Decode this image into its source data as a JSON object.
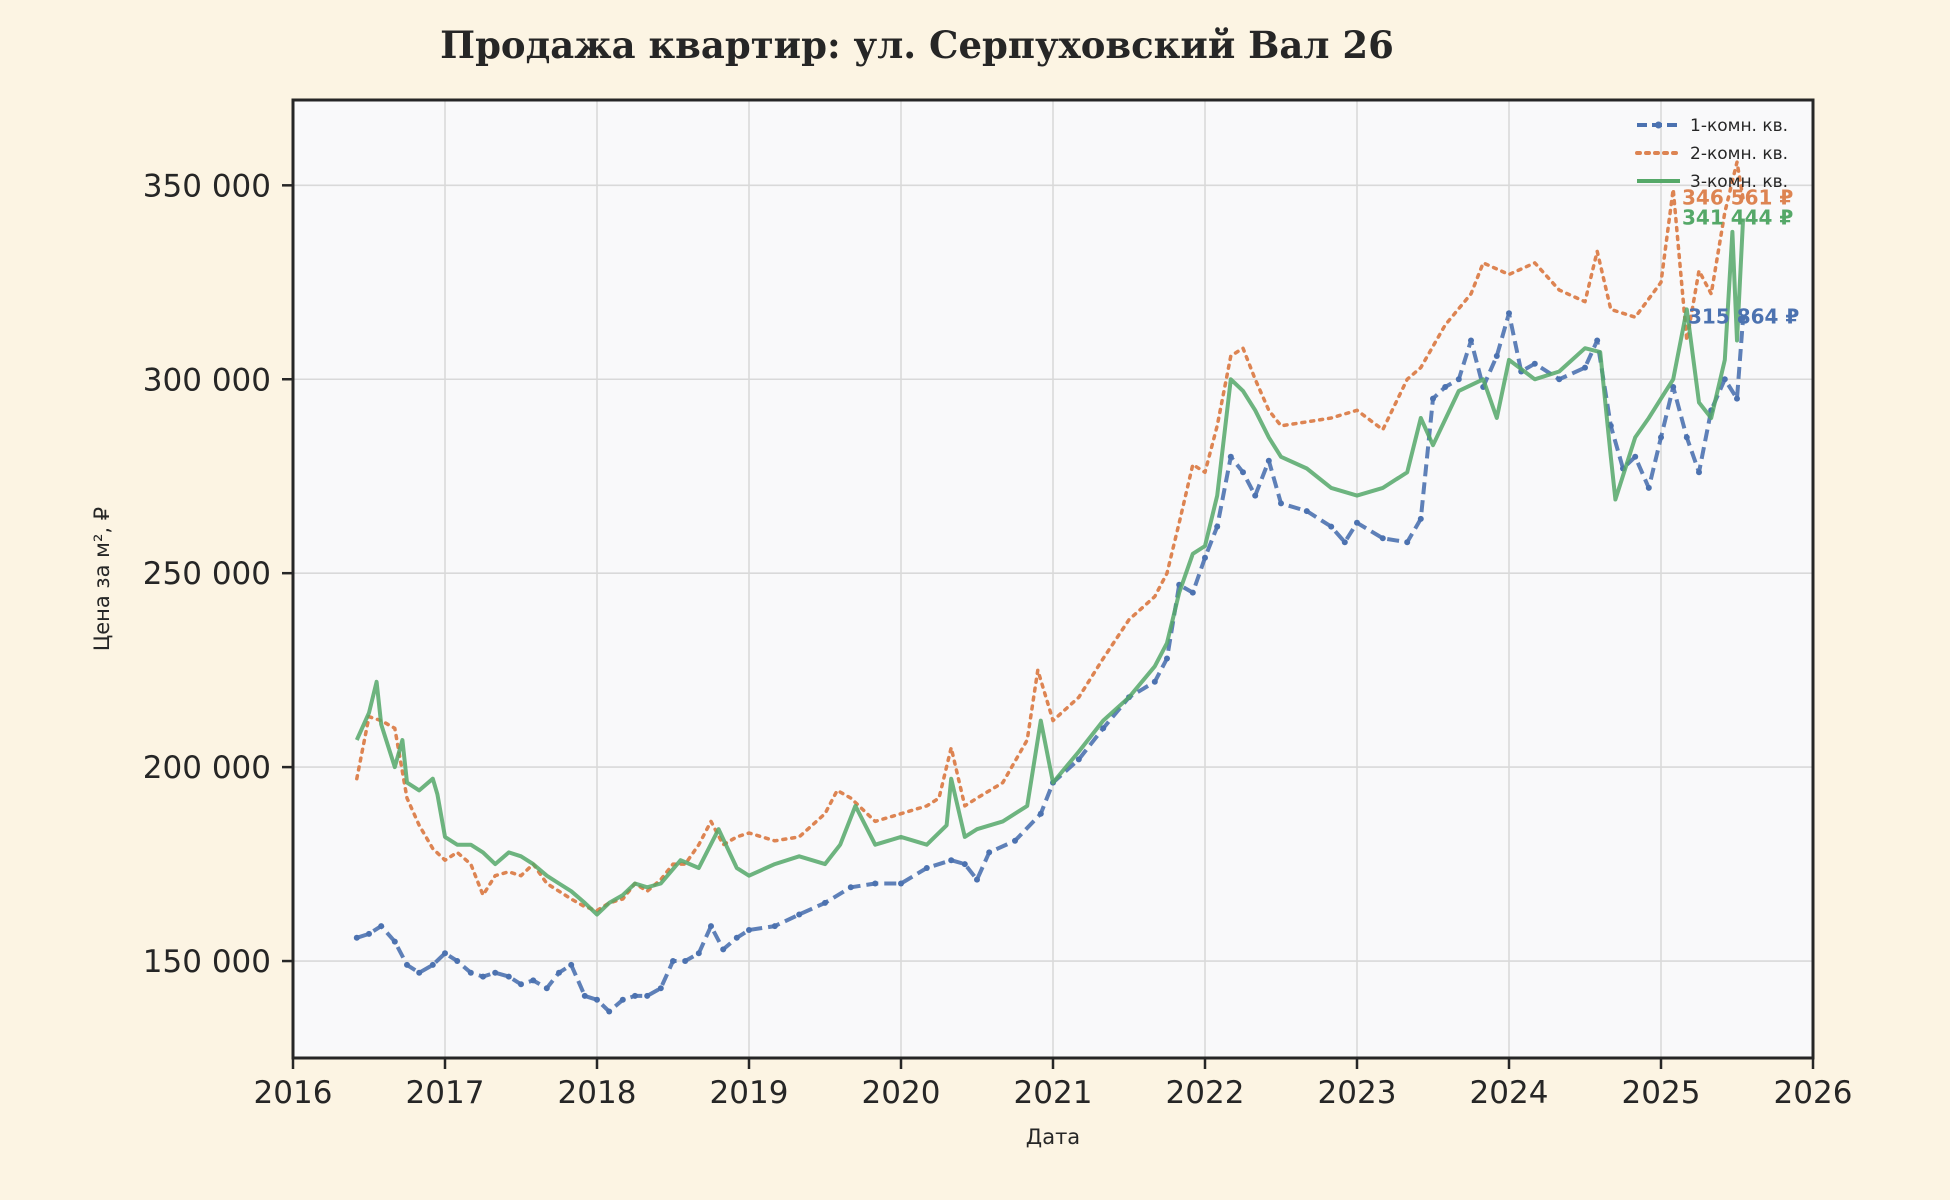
{
  "chart_data": {
    "type": "line",
    "title": "Продажа квартир: ул. Серпуховский Вал 26",
    "xlabel": "Дата",
    "ylabel": "Цена за м², ₽",
    "xlim": [
      2016.0,
      2026.0
    ],
    "ylim": [
      125000,
      372000
    ],
    "x_ticks": [
      2016,
      2017,
      2018,
      2019,
      2020,
      2021,
      2022,
      2023,
      2024,
      2025,
      2026
    ],
    "x_tick_labels": [
      "2016",
      "2017",
      "2018",
      "2019",
      "2020",
      "2021",
      "2022",
      "2023",
      "2024",
      "2025",
      "2026"
    ],
    "y_ticks": [
      150000,
      200000,
      250000,
      300000,
      350000
    ],
    "y_tick_labels": [
      "150 000",
      "200 000",
      "250 000",
      "300 000",
      "350 000"
    ],
    "grid": true,
    "legend_position": "top-right",
    "series": [
      {
        "name": "1-комн. кв.",
        "color": "#4c72b0",
        "style": "dashed-markers",
        "end_label": "315 864 ₽",
        "x": [
          2016.42,
          2016.5,
          2016.58,
          2016.67,
          2016.75,
          2016.83,
          2016.92,
          2017.0,
          2017.08,
          2017.17,
          2017.25,
          2017.33,
          2017.42,
          2017.5,
          2017.58,
          2017.67,
          2017.75,
          2017.83,
          2017.92,
          2018.0,
          2018.08,
          2018.17,
          2018.25,
          2018.33,
          2018.42,
          2018.5,
          2018.58,
          2018.67,
          2018.75,
          2018.83,
          2018.92,
          2019.0,
          2019.17,
          2019.33,
          2019.5,
          2019.67,
          2019.83,
          2020.0,
          2020.17,
          2020.33,
          2020.42,
          2020.5,
          2020.58,
          2020.75,
          2020.92,
          2021.0,
          2021.17,
          2021.33,
          2021.5,
          2021.67,
          2021.75,
          2021.83,
          2021.92,
          2022.0,
          2022.08,
          2022.17,
          2022.25,
          2022.33,
          2022.42,
          2022.5,
          2022.67,
          2022.83,
          2022.92,
          2023.0,
          2023.17,
          2023.33,
          2023.42,
          2023.5,
          2023.58,
          2023.67,
          2023.75,
          2023.83,
          2023.92,
          2024.0,
          2024.08,
          2024.17,
          2024.33,
          2024.5,
          2024.58,
          2024.67,
          2024.75,
          2024.83,
          2024.92,
          2025.0,
          2025.08,
          2025.17,
          2025.25,
          2025.33,
          2025.42,
          2025.5,
          2025.54
        ],
        "y": [
          156000,
          157000,
          159000,
          155000,
          149000,
          147000,
          149000,
          152000,
          150000,
          147000,
          146000,
          147000,
          146000,
          144000,
          145000,
          143000,
          147000,
          149000,
          141000,
          140000,
          137000,
          140000,
          141000,
          141000,
          143000,
          150000,
          150000,
          152000,
          159000,
          153000,
          156000,
          158000,
          159000,
          162000,
          165000,
          169000,
          170000,
          170000,
          174000,
          176000,
          175000,
          171000,
          178000,
          181000,
          188000,
          196000,
          202000,
          210000,
          218000,
          222000,
          228000,
          247000,
          245000,
          254000,
          262000,
          280000,
          276000,
          270000,
          279000,
          268000,
          266000,
          262000,
          258000,
          263000,
          259000,
          258000,
          264000,
          295000,
          298000,
          300000,
          310000,
          298000,
          306000,
          317000,
          302000,
          304000,
          300000,
          303000,
          310000,
          288000,
          277000,
          280000,
          272000,
          285000,
          298000,
          285000,
          276000,
          292000,
          300000,
          295000,
          315864
        ]
      },
      {
        "name": "2-комн. кв.",
        "color": "#dd8452",
        "style": "dotted",
        "end_label": "346 561 ₽",
        "x": [
          2016.42,
          2016.5,
          2016.58,
          2016.67,
          2016.75,
          2016.83,
          2016.92,
          2017.0,
          2017.08,
          2017.17,
          2017.25,
          2017.33,
          2017.42,
          2017.5,
          2017.58,
          2017.67,
          2017.75,
          2017.83,
          2017.92,
          2018.0,
          2018.08,
          2018.17,
          2018.25,
          2018.33,
          2018.42,
          2018.5,
          2018.58,
          2018.67,
          2018.75,
          2018.83,
          2018.92,
          2019.0,
          2019.17,
          2019.33,
          2019.5,
          2019.58,
          2019.67,
          2019.83,
          2020.0,
          2020.17,
          2020.25,
          2020.33,
          2020.42,
          2020.5,
          2020.67,
          2020.83,
          2020.9,
          2021.0,
          2021.17,
          2021.33,
          2021.5,
          2021.67,
          2021.75,
          2021.83,
          2021.92,
          2022.0,
          2022.08,
          2022.17,
          2022.25,
          2022.33,
          2022.42,
          2022.5,
          2022.67,
          2022.83,
          2023.0,
          2023.17,
          2023.33,
          2023.42,
          2023.58,
          2023.75,
          2023.83,
          2024.0,
          2024.17,
          2024.33,
          2024.5,
          2024.58,
          2024.67,
          2024.83,
          2025.0,
          2025.08,
          2025.17,
          2025.25,
          2025.33,
          2025.42,
          2025.5,
          2025.54
        ],
        "y": [
          197000,
          213000,
          212000,
          210000,
          192000,
          185000,
          179000,
          176000,
          178000,
          175000,
          167000,
          172000,
          173000,
          172000,
          175000,
          170000,
          168000,
          166000,
          164000,
          163000,
          165000,
          166000,
          170000,
          168000,
          171000,
          175000,
          175000,
          180000,
          186000,
          180000,
          182000,
          183000,
          181000,
          182000,
          188000,
          194000,
          192000,
          186000,
          188000,
          190000,
          192000,
          205000,
          190000,
          192000,
          196000,
          207000,
          225000,
          212000,
          218000,
          228000,
          238000,
          244000,
          250000,
          263000,
          278000,
          276000,
          288000,
          306000,
          308000,
          300000,
          292000,
          288000,
          289000,
          290000,
          292000,
          287000,
          300000,
          303000,
          314000,
          322000,
          330000,
          327000,
          330000,
          323000,
          320000,
          333000,
          318000,
          316000,
          325000,
          349000,
          310000,
          328000,
          322000,
          343000,
          356000,
          346561
        ]
      },
      {
        "name": "3-комн. кв.",
        "color": "#55a868",
        "style": "solid",
        "end_label": "341 444 ₽",
        "x": [
          2016.42,
          2016.5,
          2016.55,
          2016.58,
          2016.67,
          2016.72,
          2016.75,
          2016.83,
          2016.92,
          2016.95,
          2017.0,
          2017.08,
          2017.17,
          2017.25,
          2017.33,
          2017.42,
          2017.5,
          2017.58,
          2017.67,
          2017.75,
          2017.83,
          2017.92,
          2018.0,
          2018.08,
          2018.17,
          2018.25,
          2018.33,
          2018.42,
          2018.55,
          2018.67,
          2018.8,
          2018.92,
          2019.0,
          2019.17,
          2019.33,
          2019.5,
          2019.6,
          2019.7,
          2019.83,
          2020.0,
          2020.17,
          2020.3,
          2020.33,
          2020.42,
          2020.5,
          2020.67,
          2020.83,
          2020.92,
          2021.0,
          2021.17,
          2021.33,
          2021.5,
          2021.67,
          2021.75,
          2021.83,
          2021.92,
          2022.0,
          2022.08,
          2022.17,
          2022.25,
          2022.33,
          2022.42,
          2022.5,
          2022.67,
          2022.83,
          2023.0,
          2023.17,
          2023.33,
          2023.42,
          2023.5,
          2023.67,
          2023.83,
          2023.92,
          2024.0,
          2024.17,
          2024.33,
          2024.5,
          2024.6,
          2024.67,
          2024.7,
          2024.83,
          2024.92,
          2025.0,
          2025.08,
          2025.17,
          2025.25,
          2025.33,
          2025.42,
          2025.47,
          2025.5,
          2025.54
        ],
        "y": [
          207000,
          214000,
          222000,
          211000,
          200000,
          207000,
          196000,
          194000,
          197000,
          193000,
          182000,
          180000,
          180000,
          178000,
          175000,
          178000,
          177000,
          175000,
          172000,
          170000,
          168000,
          165000,
          162000,
          165000,
          167000,
          170000,
          169000,
          170000,
          176000,
          174000,
          184000,
          174000,
          172000,
          175000,
          177000,
          175000,
          180000,
          190000,
          180000,
          182000,
          180000,
          185000,
          197000,
          182000,
          184000,
          186000,
          190000,
          212000,
          196000,
          204000,
          212000,
          218000,
          226000,
          232000,
          245000,
          255000,
          257000,
          270000,
          300000,
          297000,
          292000,
          285000,
          280000,
          277000,
          272000,
          270000,
          272000,
          276000,
          290000,
          283000,
          297000,
          300000,
          290000,
          305000,
          300000,
          302000,
          308000,
          307000,
          280000,
          269000,
          285000,
          290000,
          295000,
          300000,
          318000,
          294000,
          290000,
          305000,
          338000,
          310000,
          341444
        ]
      }
    ]
  }
}
